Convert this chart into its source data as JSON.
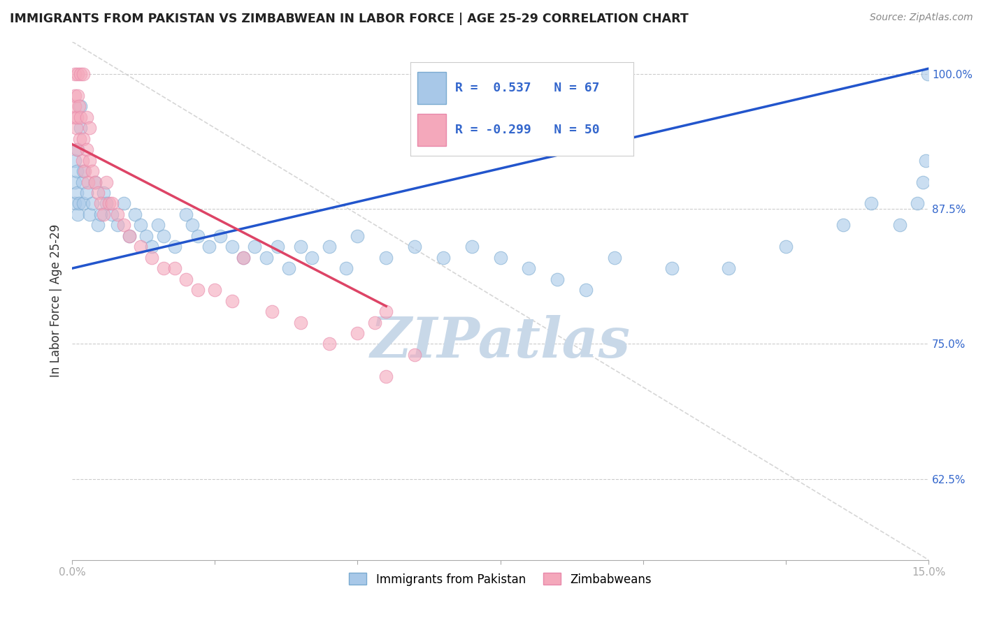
{
  "title": "IMMIGRANTS FROM PAKISTAN VS ZIMBABWEAN IN LABOR FORCE | AGE 25-29 CORRELATION CHART",
  "source": "Source: ZipAtlas.com",
  "ylabel": "In Labor Force | Age 25-29",
  "xlim": [
    0.0,
    15.0
  ],
  "ylim": [
    55.0,
    103.0
  ],
  "xticks": [
    0.0,
    2.5,
    5.0,
    7.5,
    10.0,
    12.5,
    15.0
  ],
  "yticks": [
    62.5,
    75.0,
    87.5,
    100.0
  ],
  "xtick_labels": [
    "0.0%",
    "",
    "",
    "",
    "",
    "",
    "15.0%"
  ],
  "ytick_labels": [
    "62.5%",
    "75.0%",
    "87.5%",
    "100.0%"
  ],
  "blue_color": "#a8c8e8",
  "pink_color": "#f4a8bb",
  "blue_edge_color": "#7aaad0",
  "pink_edge_color": "#e888aa",
  "blue_line_color": "#2255cc",
  "pink_line_color": "#dd4466",
  "diag_line_color": "#cccccc",
  "watermark_color": "#c8d8e8",
  "watermark_text": "ZIPatlas",
  "legend_r1": "R =  0.537",
  "legend_n1": "N = 67",
  "legend_r2": "R = -0.299",
  "legend_n2": "N = 50",
  "legend_label1": "Immigrants from Pakistan",
  "legend_label2": "Zimbabweans",
  "pakistan_x": [
    0.05,
    0.05,
    0.05,
    0.08,
    0.08,
    0.1,
    0.1,
    0.12,
    0.15,
    0.15,
    0.18,
    0.2,
    0.2,
    0.25,
    0.3,
    0.35,
    0.4,
    0.45,
    0.5,
    0.55,
    0.6,
    0.7,
    0.8,
    0.9,
    1.0,
    1.1,
    1.2,
    1.3,
    1.4,
    1.5,
    1.6,
    1.8,
    2.0,
    2.1,
    2.2,
    2.4,
    2.6,
    2.8,
    3.0,
    3.2,
    3.4,
    3.6,
    3.8,
    4.0,
    4.2,
    4.5,
    4.8,
    5.0,
    5.5,
    6.0,
    6.5,
    7.0,
    7.5,
    8.0,
    8.5,
    9.0,
    9.5,
    10.5,
    11.5,
    12.5,
    13.5,
    14.0,
    14.5,
    14.8,
    14.9,
    14.95,
    14.99
  ],
  "pakistan_y": [
    88,
    90,
    92,
    89,
    91,
    87,
    93,
    88,
    95,
    97,
    90,
    88,
    91,
    89,
    87,
    88,
    90,
    86,
    87,
    89,
    88,
    87,
    86,
    88,
    85,
    87,
    86,
    85,
    84,
    86,
    85,
    84,
    87,
    86,
    85,
    84,
    85,
    84,
    83,
    84,
    83,
    84,
    82,
    84,
    83,
    84,
    82,
    85,
    83,
    84,
    83,
    84,
    83,
    82,
    81,
    80,
    83,
    82,
    82,
    84,
    86,
    88,
    86,
    88,
    90,
    92,
    100
  ],
  "zimbabwe_x": [
    0.03,
    0.05,
    0.05,
    0.05,
    0.07,
    0.08,
    0.08,
    0.1,
    0.1,
    0.12,
    0.13,
    0.15,
    0.15,
    0.18,
    0.2,
    0.2,
    0.22,
    0.25,
    0.25,
    0.28,
    0.3,
    0.3,
    0.35,
    0.4,
    0.45,
    0.5,
    0.55,
    0.6,
    0.65,
    0.7,
    0.8,
    0.9,
    1.0,
    1.2,
    1.4,
    1.6,
    1.8,
    2.0,
    2.2,
    2.5,
    2.8,
    3.0,
    3.5,
    4.0,
    4.5,
    5.0,
    5.5,
    6.0,
    5.5,
    5.3
  ],
  "zimbabwe_y": [
    96,
    97,
    100,
    98,
    95,
    96,
    93,
    98,
    100,
    97,
    94,
    96,
    100,
    92,
    94,
    100,
    91,
    93,
    96,
    90,
    92,
    95,
    91,
    90,
    89,
    88,
    87,
    90,
    88,
    88,
    87,
    86,
    85,
    84,
    83,
    82,
    82,
    81,
    80,
    80,
    79,
    83,
    78,
    77,
    75,
    76,
    72,
    74,
    78,
    77
  ],
  "blue_line_x": [
    0.0,
    15.0
  ],
  "blue_line_y": [
    82.0,
    100.5
  ],
  "pink_line_x": [
    0.0,
    5.5
  ],
  "pink_line_y": [
    93.5,
    78.5
  ],
  "diag_line_x": [
    0.0,
    15.0
  ],
  "diag_line_y": [
    103.0,
    55.0
  ],
  "grid_color": "#cccccc",
  "background_color": "#ffffff",
  "title_color": "#222222",
  "source_color": "#888888",
  "ylabel_color": "#333333",
  "ytick_color": "#3366cc",
  "xtick_color": "#222222"
}
